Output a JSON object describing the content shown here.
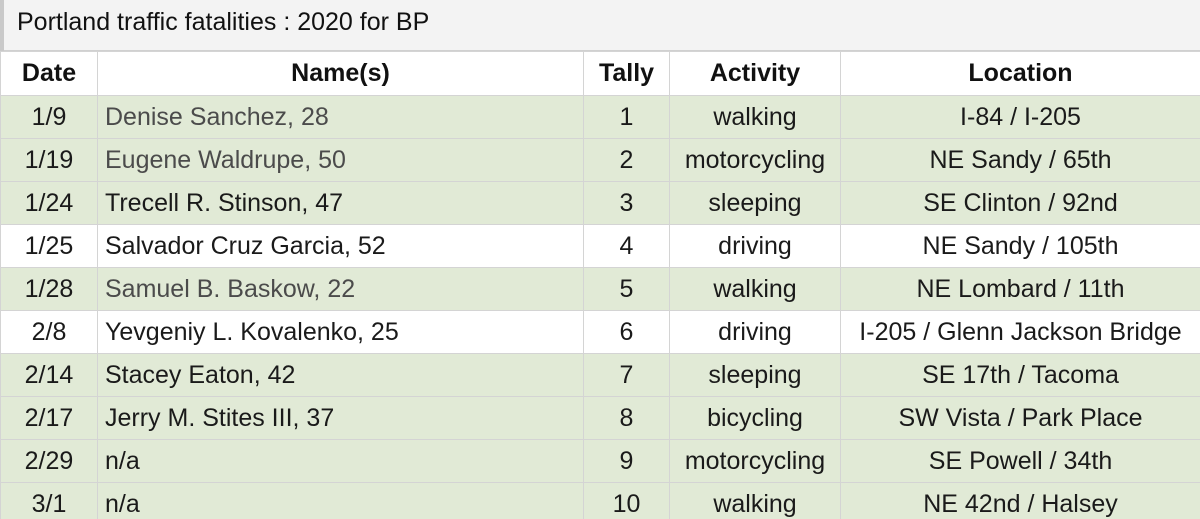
{
  "sheet": {
    "title": "Portland traffic fatalities : 2020 for BP"
  },
  "table": {
    "headers": {
      "date": "Date",
      "names": "Name(s)",
      "tally": "Tally",
      "activity": "Activity",
      "location": "Location"
    },
    "rows": [
      {
        "date": "1/9",
        "names": "Denise Sanchez, 28",
        "tally": "1",
        "activity": "walking",
        "location": "I-84 / I-205"
      },
      {
        "date": "1/19",
        "names": "Eugene Waldrupe, 50",
        "tally": "2",
        "activity": "motorcycling",
        "location": "NE Sandy / 65th"
      },
      {
        "date": "1/24",
        "names": "Trecell R. Stinson, 47",
        "tally": "3",
        "activity": "sleeping",
        "location": "SE Clinton / 92nd"
      },
      {
        "date": "1/25",
        "names": "Salvador Cruz Garcia, 52",
        "tally": "4",
        "activity": "driving",
        "location": "NE Sandy / 105th"
      },
      {
        "date": "1/28",
        "names": "Samuel B. Baskow, 22",
        "tally": "5",
        "activity": "walking",
        "location": "NE Lombard / 11th"
      },
      {
        "date": "2/8",
        "names": "Yevgeniy L. Kovalenko, 25",
        "tally": "6",
        "activity": "driving",
        "location": "I-205 / Glenn Jackson Bridge"
      },
      {
        "date": "2/14",
        "names": "Stacey Eaton, 42",
        "tally": "7",
        "activity": "sleeping",
        "location": "SE 17th / Tacoma"
      },
      {
        "date": "2/17",
        "names": "Jerry M. Stites III, 37",
        "tally": "8",
        "activity": "bicycling",
        "location": "SW Vista / Park Place"
      },
      {
        "date": "2/29",
        "names": "n/a",
        "tally": "9",
        "activity": "motorcycling",
        "location": "SE Powell / 34th"
      },
      {
        "date": "3/1",
        "names": "n/a",
        "tally": "10",
        "activity": "walking",
        "location": "NE 42nd / Halsey"
      }
    ]
  },
  "colors": {
    "row_green": "#e1ead6",
    "row_white": "#ffffff",
    "grid": "#d4d4d4",
    "title_bg": "#f3f3f3"
  }
}
